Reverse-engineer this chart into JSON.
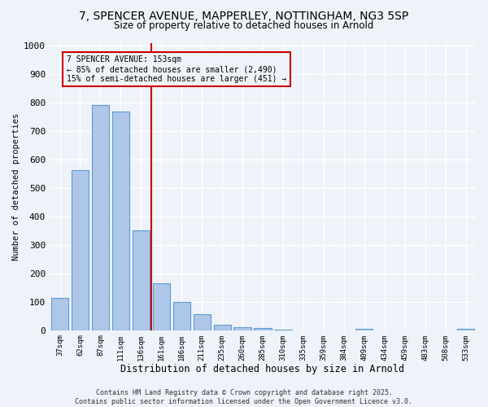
{
  "title_line1": "7, SPENCER AVENUE, MAPPERLEY, NOTTINGHAM, NG3 5SP",
  "title_line2": "Size of property relative to detached houses in Arnold",
  "xlabel": "Distribution of detached houses by size in Arnold",
  "ylabel": "Number of detached properties",
  "categories": [
    "37sqm",
    "62sqm",
    "87sqm",
    "111sqm",
    "136sqm",
    "161sqm",
    "186sqm",
    "211sqm",
    "235sqm",
    "260sqm",
    "285sqm",
    "310sqm",
    "335sqm",
    "359sqm",
    "384sqm",
    "409sqm",
    "434sqm",
    "459sqm",
    "483sqm",
    "508sqm",
    "533sqm"
  ],
  "values": [
    113,
    563,
    793,
    770,
    350,
    165,
    98,
    55,
    18,
    12,
    8,
    1,
    0,
    0,
    0,
    5,
    0,
    0,
    0,
    0,
    5
  ],
  "bar_color": "#aec6e8",
  "bar_edge_color": "#5b9bd5",
  "vline_x": 4.5,
  "vline_color": "#cc0000",
  "annotation_text": "7 SPENCER AVENUE: 153sqm\n← 85% of detached houses are smaller (2,490)\n15% of semi-detached houses are larger (451) →",
  "annotation_box_color": "#cc0000",
  "ylim": [
    0,
    1010
  ],
  "yticks": [
    0,
    100,
    200,
    300,
    400,
    500,
    600,
    700,
    800,
    900,
    1000
  ],
  "background_color": "#eef2f9",
  "grid_color": "#ffffff",
  "footer_text": "Contains HM Land Registry data © Crown copyright and database right 2025.\nContains public sector information licensed under the Open Government Licence v3.0."
}
